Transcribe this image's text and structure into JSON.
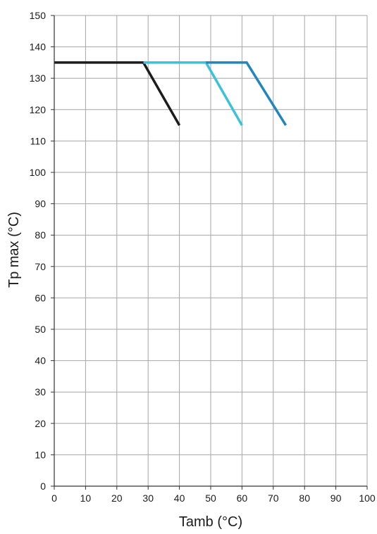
{
  "chart_data": {
    "type": "line",
    "title": "",
    "xlabel": "Tamb (°C)",
    "ylabel": "Tp max (°C)",
    "xlim": [
      0,
      100
    ],
    "ylim": [
      0,
      150
    ],
    "x_ticks": [
      0,
      10,
      20,
      30,
      40,
      50,
      60,
      70,
      80,
      90,
      100
    ],
    "y_ticks": [
      0,
      10,
      20,
      30,
      40,
      50,
      60,
      70,
      80,
      90,
      100,
      110,
      120,
      130,
      140,
      150
    ],
    "grid": true,
    "legend": "none",
    "series": [
      {
        "color": "#1c1c1c",
        "x": [
          0,
          28.5,
          40
        ],
        "y": [
          135,
          135,
          115
        ]
      },
      {
        "color": "#3cc1da",
        "x": [
          28.5,
          48.5,
          60
        ],
        "y": [
          135,
          135,
          115
        ]
      },
      {
        "color": "#2186bd",
        "x": [
          48.5,
          61.5,
          74
        ],
        "y": [
          135,
          135,
          115
        ]
      }
    ]
  },
  "colors": {
    "grid": "#a6a6a6",
    "axis": "#333333"
  }
}
